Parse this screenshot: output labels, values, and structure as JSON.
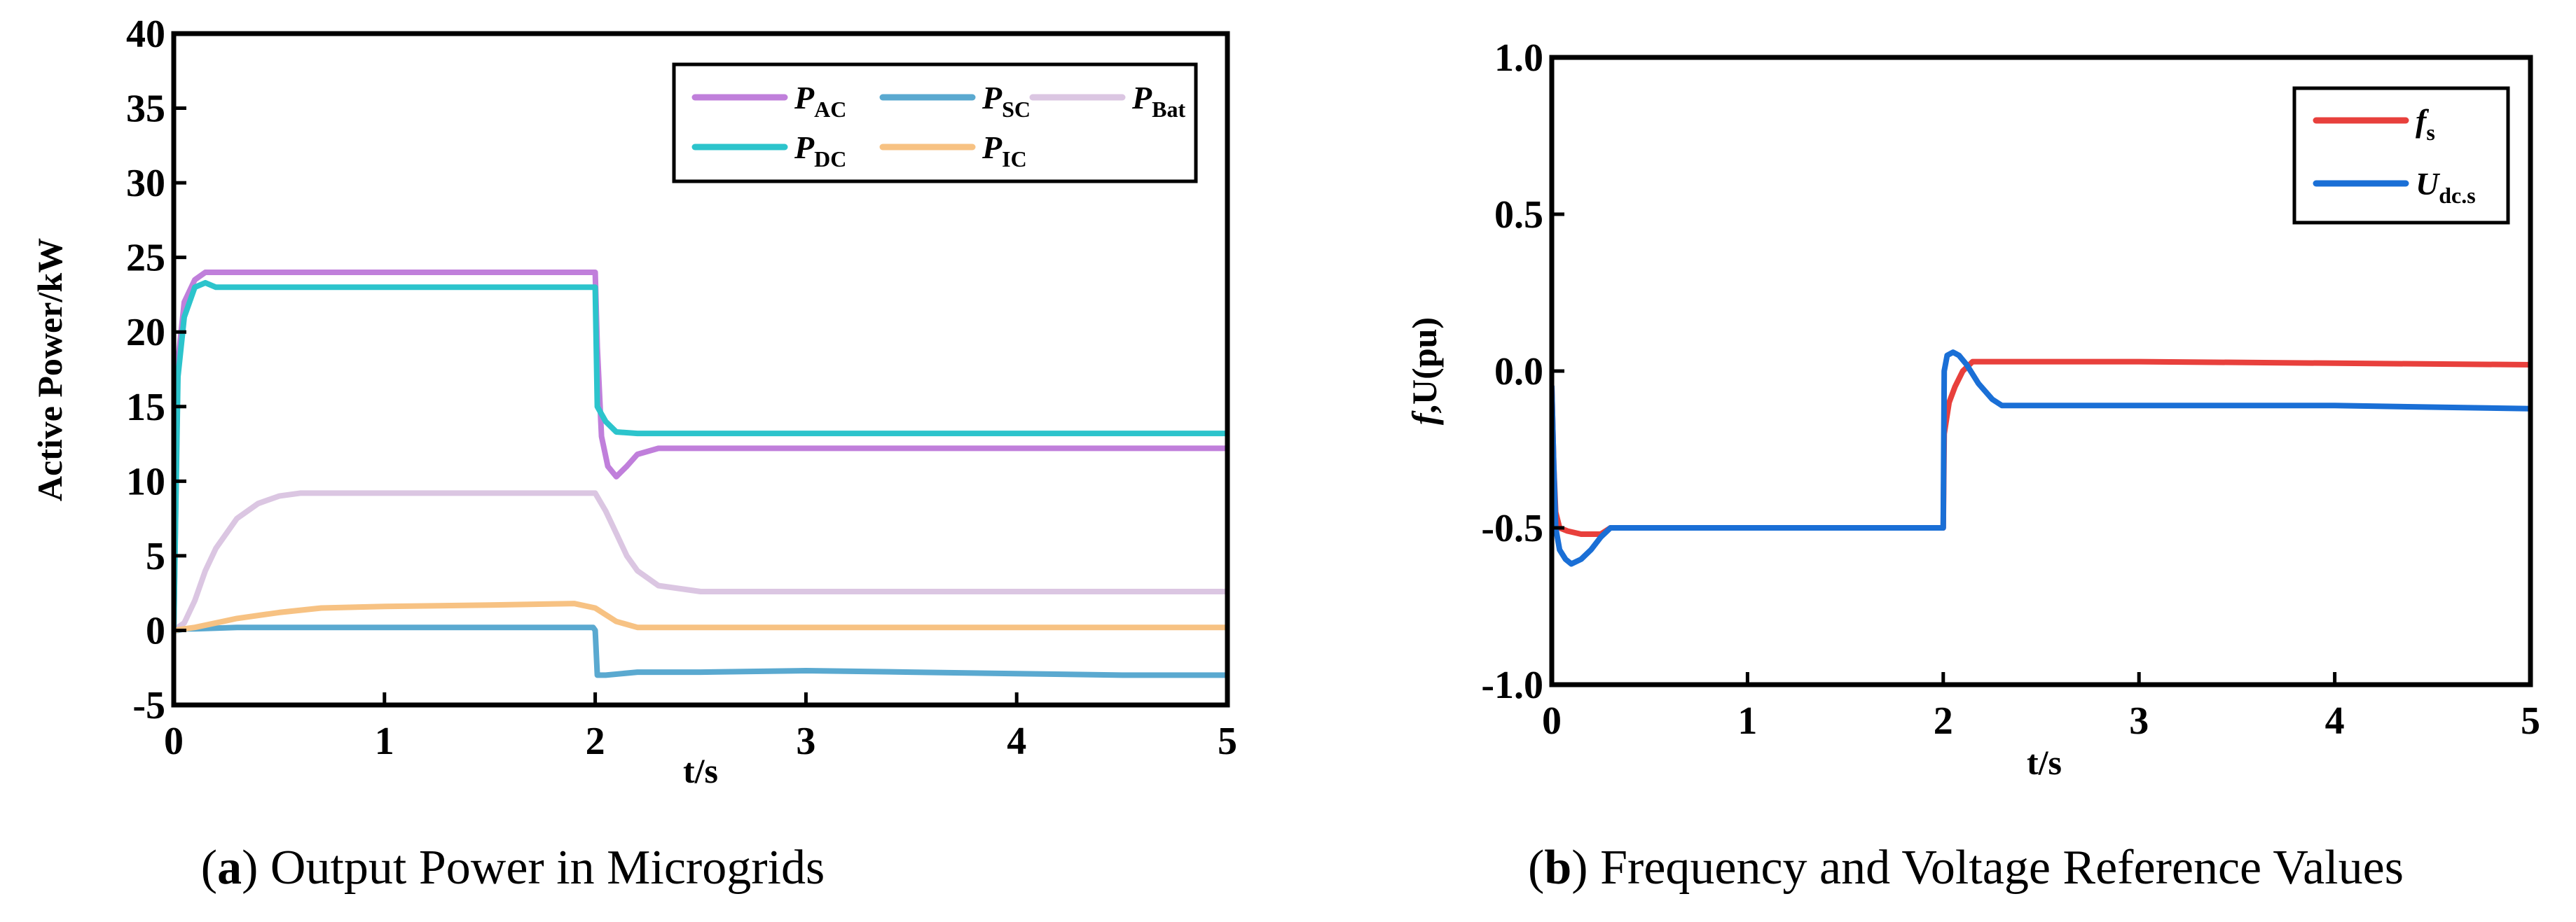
{
  "chart_data": [
    {
      "type": "line",
      "xlabel": "t/s",
      "ylabel": "Active Power/kW",
      "xlim": [
        0,
        5
      ],
      "ylim": [
        -5,
        40
      ],
      "xticks": [
        "0",
        "1",
        "2",
        "3",
        "4",
        "5"
      ],
      "yticks": [
        "-5",
        "0",
        "5",
        "10",
        "15",
        "20",
        "25",
        "30",
        "35",
        "40"
      ],
      "legend_position": "top-right",
      "caption": {
        "open": "(",
        "letter": "a",
        "text": ") Output Power in Microgrids"
      },
      "series": [
        {
          "name": "P_AC",
          "label_main": "P",
          "label_sub": "AC",
          "color": "#c07fdb",
          "x": [
            0,
            0.02,
            0.05,
            0.1,
            0.15,
            0.3,
            1.0,
            1.5,
            2.0,
            2.01,
            2.03,
            2.06,
            2.1,
            2.15,
            2.2,
            2.3,
            2.5,
            3.0,
            4.0,
            5.0
          ],
          "y": [
            0,
            18,
            22,
            23.5,
            24,
            24,
            24,
            24,
            24,
            19,
            13,
            11,
            10.3,
            11,
            11.8,
            12.2,
            12.2,
            12.2,
            12.2,
            12.2
          ]
        },
        {
          "name": "P_SC",
          "label_main": "P",
          "label_sub": "SC",
          "color": "#5aa9d0",
          "x": [
            0,
            0.02,
            0.05,
            0.1,
            0.3,
            0.5,
            1.0,
            1.5,
            1.99,
            2.0,
            2.01,
            2.05,
            2.2,
            2.5,
            3.0,
            3.5,
            4.0,
            4.5,
            5.0
          ],
          "y": [
            0,
            0,
            0.1,
            0.1,
            0.2,
            0.2,
            0.2,
            0.2,
            0.2,
            0,
            -3,
            -3,
            -2.8,
            -2.8,
            -2.7,
            -2.8,
            -2.9,
            -3.0,
            -3.0
          ]
        },
        {
          "name": "P_Bat",
          "label_main": "P",
          "label_sub": "Bat",
          "color": "#dbc6e2",
          "x": [
            0,
            0.05,
            0.1,
            0.15,
            0.2,
            0.3,
            0.4,
            0.5,
            0.6,
            1.0,
            1.5,
            2.0,
            2.05,
            2.1,
            2.15,
            2.2,
            2.3,
            2.5,
            3.0,
            4.0,
            5.0
          ],
          "y": [
            0,
            0.5,
            2,
            4,
            5.5,
            7.5,
            8.5,
            9,
            9.2,
            9.2,
            9.2,
            9.2,
            8,
            6.5,
            5,
            4,
            3,
            2.6,
            2.6,
            2.6,
            2.6
          ]
        },
        {
          "name": "P_DC",
          "label_main": "P",
          "label_sub": "DC",
          "color": "#2cc4cc",
          "x": [
            0,
            0.02,
            0.05,
            0.1,
            0.15,
            0.2,
            0.3,
            1.0,
            1.5,
            2.0,
            2.01,
            2.05,
            2.1,
            2.2,
            2.3,
            3.0,
            4.0,
            5.0
          ],
          "y": [
            0,
            17,
            21,
            23,
            23.3,
            23,
            23,
            23,
            23,
            23,
            15,
            14,
            13.3,
            13.2,
            13.2,
            13.2,
            13.2,
            13.2
          ]
        },
        {
          "name": "P_IC",
          "label_main": "P",
          "label_sub": "IC",
          "color": "#f7c283",
          "x": [
            0,
            0.1,
            0.2,
            0.3,
            0.5,
            0.7,
            1.0,
            1.5,
            1.9,
            2.0,
            2.1,
            2.2,
            2.5,
            3.0,
            4.0,
            5.0
          ],
          "y": [
            0,
            0.2,
            0.5,
            0.8,
            1.2,
            1.5,
            1.6,
            1.7,
            1.8,
            1.5,
            0.6,
            0.2,
            0.2,
            0.2,
            0.2,
            0.2
          ]
        }
      ]
    },
    {
      "type": "line",
      "xlabel": "t/s",
      "ylabel": "f,U(pu)",
      "ylabel_main": "f",
      "ylabel_rest": ",U(pu)",
      "xlim": [
        0,
        5
      ],
      "ylim": [
        -1.0,
        1.0
      ],
      "xticks": [
        "0",
        "1",
        "2",
        "3",
        "4",
        "5"
      ],
      "yticks": [
        "-1.0",
        "-0.5",
        "0.0",
        "0.5",
        "1.0"
      ],
      "legend_position": "top-right",
      "caption": {
        "open": "(",
        "letter": "b",
        "text": ") Frequency and Voltage Reference Values"
      },
      "series": [
        {
          "name": "f_s",
          "label_main": "f",
          "label_sub": "s",
          "color": "#e8403c",
          "x": [
            0,
            0.01,
            0.02,
            0.04,
            0.08,
            0.15,
            0.25,
            0.3,
            0.5,
            1.0,
            1.5,
            2.0,
            2.005,
            2.03,
            2.06,
            2.1,
            2.15,
            2.3,
            3.0,
            4.0,
            5.0
          ],
          "y": [
            -0.05,
            -0.3,
            -0.45,
            -0.5,
            -0.51,
            -0.52,
            -0.52,
            -0.5,
            -0.5,
            -0.5,
            -0.5,
            -0.5,
            -0.2,
            -0.1,
            -0.05,
            0.0,
            0.03,
            0.03,
            0.03,
            0.025,
            0.02
          ]
        },
        {
          "name": "U_dc.s",
          "label_main": "U",
          "label_sub": "dc.s",
          "color": "#1a6fd6",
          "x": [
            0,
            0.01,
            0.02,
            0.04,
            0.07,
            0.1,
            0.15,
            0.2,
            0.25,
            0.3,
            0.5,
            1.0,
            1.5,
            2.0,
            2.005,
            2.02,
            2.05,
            2.08,
            2.12,
            2.18,
            2.25,
            2.3,
            3.0,
            4.0,
            5.0
          ],
          "y": [
            -0.05,
            -0.3,
            -0.5,
            -0.57,
            -0.6,
            -0.615,
            -0.6,
            -0.57,
            -0.53,
            -0.5,
            -0.5,
            -0.5,
            -0.5,
            -0.5,
            0.0,
            0.05,
            0.06,
            0.05,
            0.02,
            -0.04,
            -0.09,
            -0.11,
            -0.11,
            -0.11,
            -0.12
          ]
        }
      ]
    }
  ]
}
